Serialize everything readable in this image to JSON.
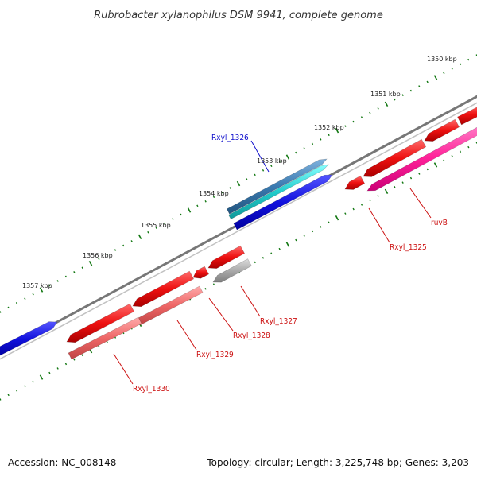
{
  "title": "Rubrobacter xylanophilus DSM 9941, complete genome",
  "accession": "Accession: NC_008148",
  "summary": "Topology: circular; Length: 3,225,748 bp; Genes: 3,203",
  "ticks": [
    {
      "label": "1350 kbp"
    },
    {
      "label": "1351 kbp"
    },
    {
      "label": "1352 kbp"
    },
    {
      "label": "1353 kbp"
    },
    {
      "label": "1354 kbp"
    },
    {
      "label": "1355 kbp"
    },
    {
      "label": "1356 kbp"
    },
    {
      "label": "1357 kbp"
    }
  ],
  "gene_labels": [
    {
      "name": "Rxyl_1326",
      "color": "#1010cc"
    },
    {
      "name": "ruvB",
      "color": "#cc1111"
    },
    {
      "name": "Rxyl_1325",
      "color": "#cc1111"
    },
    {
      "name": "Rxyl_1327",
      "color": "#cc1111"
    },
    {
      "name": "Rxyl_1328",
      "color": "#cc1111"
    },
    {
      "name": "Rxyl_1329",
      "color": "#cc1111"
    },
    {
      "name": "Rxyl_1330",
      "color": "#cc1111"
    }
  ],
  "colors": {
    "cds_red": "#ee1111",
    "rna_pink": "#ff2299",
    "cds_salmon": "#ee6666",
    "cds_blue": "#1111dd",
    "cds_cyan": "#22cccc",
    "cds_steelblue": "#3a7ab0",
    "gray": "#aaaaaa",
    "backbone": "#777777",
    "ticks": "#117711"
  }
}
